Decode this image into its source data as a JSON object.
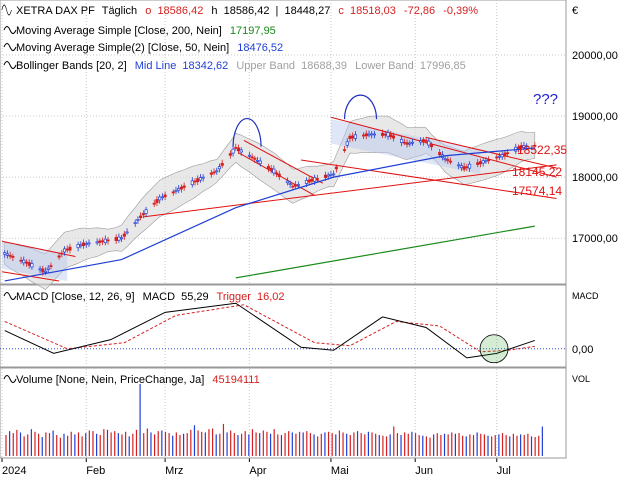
{
  "header": {
    "symbol": "XETRA DAX PF",
    "interval": "Täglich",
    "ohlc": {
      "o_label": "o",
      "o": "18586,42",
      "h_label": "h",
      "h": "18586,42",
      "l_label": "l",
      "l": "18448,27",
      "c_label": "c",
      "c": "18518,03",
      "change": "-72,86",
      "change_pct": "-0,39%"
    },
    "indicators": [
      {
        "label": "Moving Average Simple [Close, 200, Nein]",
        "value": "17197,95",
        "color": "#1a8a1a"
      },
      {
        "label": "Moving Average Simple(2) [Close, 50, Nein]",
        "value": "18476,52",
        "color": "#1f3fd6"
      },
      {
        "label": "Bollinger Bands [20, 2]",
        "mid_label": "Mid Line",
        "mid": "18342,62",
        "upper_label": "Upper Band",
        "upper": "18688,39",
        "lower_label": "Lower Band",
        "lower": "17996,85"
      }
    ]
  },
  "currency": "€",
  "annotation": "???",
  "price_labels": [
    "18522,35",
    "18145,22",
    "17574,14"
  ],
  "macd": {
    "label": "MACD [Close, 12, 26, 9]",
    "macd_label": "MACD",
    "macd": "55,29",
    "trigger_label": "Trigger",
    "trigger": "16,02",
    "axis_title": "MACD"
  },
  "volume": {
    "label": "Volume [None, Nein, PriceChange, Ja]",
    "value": "45194111",
    "axis_title": "VOL"
  },
  "colors": {
    "up": "#1f3fd6",
    "down": "#d62020",
    "ma200": "#1a8a1a",
    "ma50": "#1f3fd6",
    "band_fill": "#d8d8d8",
    "trendline": "#e01010",
    "channel_fill": "#b8c8ee",
    "macd_line": "#000000",
    "trigger_line": "#d62020"
  },
  "chart_data": [
    {
      "type": "line",
      "title": "XETRA DAX PF",
      "xlabel": "",
      "ylabel": "",
      "x_tick_labels": [
        "2024",
        "Feb",
        "Mrz",
        "Apr",
        "Mai",
        "Jun",
        "Jul"
      ],
      "y_ticks": [
        17000,
        18000,
        19000,
        20000
      ],
      "y_tick_labels": [
        "17000,00",
        "18000,00",
        "19000,00",
        "20000,00"
      ],
      "ylim": [
        16250,
        20900
      ],
      "grid": true,
      "series": [
        {
          "name": "Close",
          "x": [
            "2024-01-02",
            "2024-01-10",
            "2024-01-17",
            "2024-01-24",
            "2024-01-31",
            "2024-02-07",
            "2024-02-14",
            "2024-02-21",
            "2024-02-28",
            "2024-03-06",
            "2024-03-13",
            "2024-03-20",
            "2024-03-27",
            "2024-04-03",
            "2024-04-10",
            "2024-04-17",
            "2024-04-24",
            "2024-05-02",
            "2024-05-08",
            "2024-05-15",
            "2024-05-22",
            "2024-05-29",
            "2024-06-05",
            "2024-06-12",
            "2024-06-19",
            "2024-06-26",
            "2024-07-03",
            "2024-07-10",
            "2024-07-15"
          ],
          "values": [
            16750,
            16600,
            16450,
            16800,
            16900,
            16950,
            17000,
            17350,
            17650,
            17800,
            17950,
            18100,
            18480,
            18300,
            18100,
            17850,
            17950,
            18050,
            18650,
            18700,
            18700,
            18550,
            18600,
            18300,
            18150,
            18250,
            18350,
            18500,
            18518
          ]
        },
        {
          "name": "Moving Average Simple [Close, 200, Nein]",
          "x": [
            "2024-03-27",
            "2024-07-15"
          ],
          "values": [
            16350,
            17198
          ]
        },
        {
          "name": "Moving Average Simple(2) [Close, 50, Nein]",
          "x": [
            "2024-01-02",
            "2024-02-14",
            "2024-03-27",
            "2024-05-02",
            "2024-06-12",
            "2024-07-15"
          ],
          "values": [
            16300,
            16650,
            17500,
            18000,
            18350,
            18477
          ]
        }
      ],
      "bollinger": {
        "mid": "18342,62",
        "upper": "18688,39",
        "lower": "17996,85"
      }
    },
    {
      "type": "line",
      "title": "MACD [Close, 12, 26, 9]",
      "y_ticks": [
        0
      ],
      "y_tick_labels": [
        "0,00"
      ],
      "ylim": [
        -120,
        420
      ],
      "series": [
        {
          "name": "MACD",
          "x": [
            "2024-01-02",
            "2024-01-20",
            "2024-02-10",
            "2024-03-01",
            "2024-03-27",
            "2024-04-20",
            "2024-05-02",
            "2024-05-20",
            "2024-06-05",
            "2024-06-20",
            "2024-07-01",
            "2024-07-15"
          ],
          "values": [
            120,
            -30,
            60,
            240,
            300,
            10,
            -10,
            210,
            140,
            -60,
            -30,
            55
          ]
        },
        {
          "name": "Trigger",
          "x": [
            "2024-01-02",
            "2024-01-25",
            "2024-02-15",
            "2024-03-05",
            "2024-03-30",
            "2024-04-25",
            "2024-05-08",
            "2024-05-25",
            "2024-06-10",
            "2024-06-25",
            "2024-07-05",
            "2024-07-15"
          ],
          "values": [
            180,
            0,
            40,
            220,
            290,
            40,
            20,
            180,
            150,
            -20,
            -10,
            16
          ]
        }
      ]
    },
    {
      "type": "bar",
      "title": "Volume [None, Nein, PriceChange, Ja]",
      "ylabel": "VOL",
      "values": [
        32,
        38,
        35,
        40,
        36,
        30,
        33,
        41,
        37,
        34,
        29,
        36,
        35,
        39,
        32,
        28,
        34,
        31,
        37,
        33,
        36,
        30,
        35,
        39,
        38,
        34,
        32,
        41,
        40,
        36,
        38,
        35,
        33,
        37,
        30,
        34,
        40,
        110,
        35,
        42,
        36,
        33,
        38,
        39,
        37,
        35,
        31,
        36,
        32,
        34,
        35,
        40,
        47,
        39,
        37,
        36,
        41,
        42,
        33,
        34,
        49,
        36,
        39,
        35,
        32,
        34,
        38,
        33,
        41,
        36,
        35,
        39,
        37,
        34,
        41,
        33,
        32,
        35,
        38,
        36,
        34,
        37,
        36,
        38,
        35,
        33,
        30,
        34,
        36,
        37,
        35,
        33,
        39,
        36,
        34,
        32,
        36,
        38,
        35,
        33,
        37,
        36,
        34,
        32,
        31,
        30,
        33,
        45,
        35,
        32,
        36,
        34,
        37,
        35,
        32,
        31,
        30,
        28,
        33,
        35,
        32,
        34,
        33,
        36,
        34,
        35,
        31,
        30,
        33,
        32,
        36,
        34,
        33,
        31,
        30,
        32,
        33,
        35,
        32,
        30,
        34,
        31,
        33,
        32,
        34,
        30,
        29,
        31,
        45
      ]
    }
  ]
}
